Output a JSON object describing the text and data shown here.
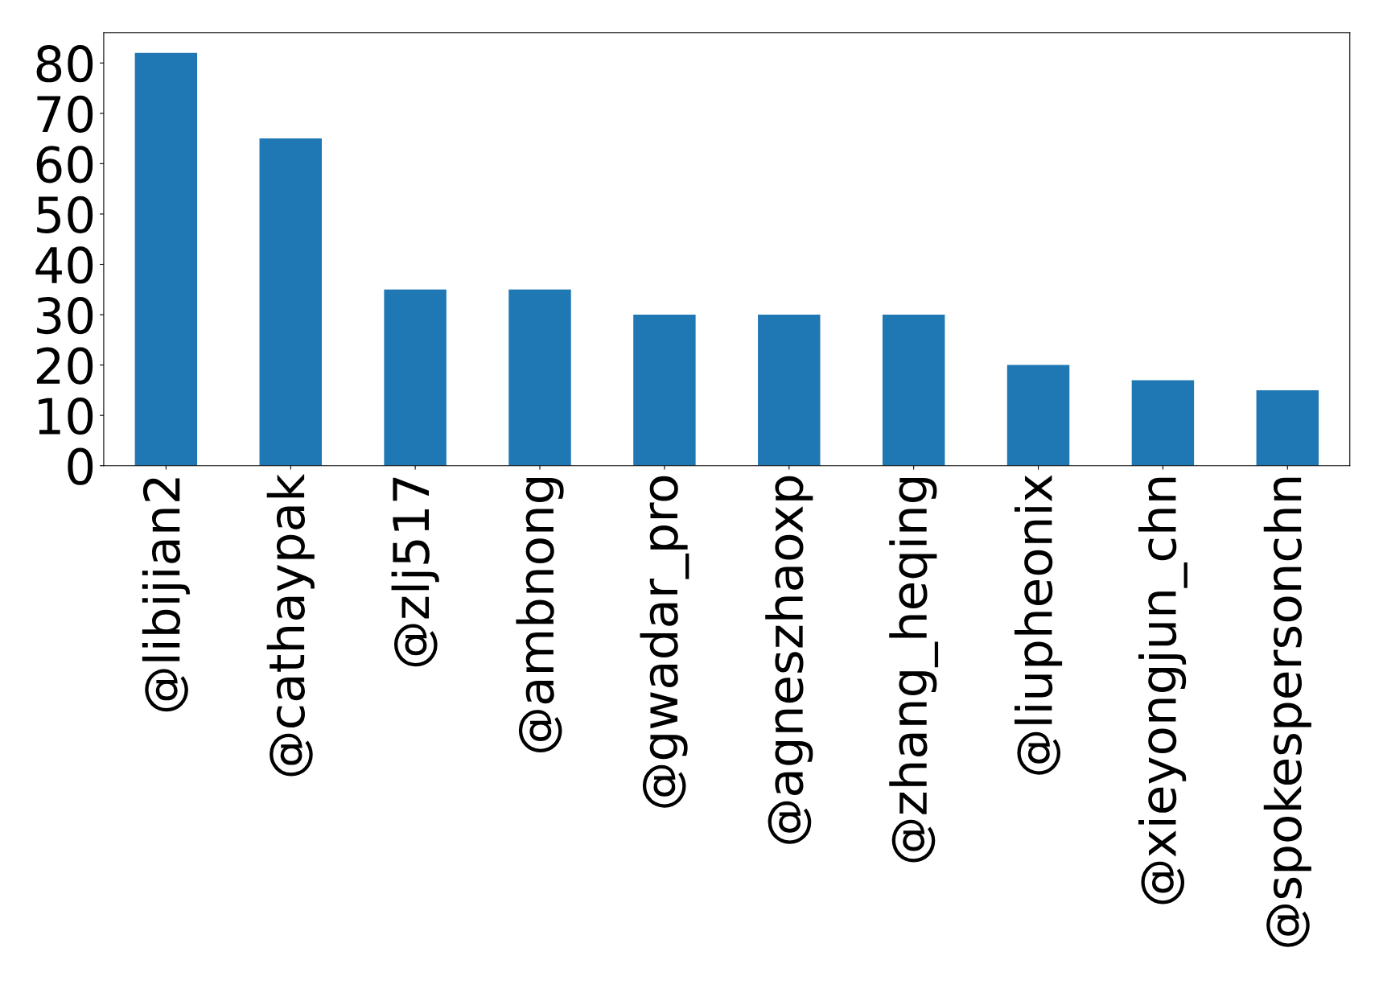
{
  "chart_data": {
    "type": "bar",
    "categories": [
      "@libijian2",
      "@cathaypak",
      "@zlj517",
      "@ambnong",
      "@gwadar_pro",
      "@agneszhaoxp",
      "@zhang_heqing",
      "@liupheonix",
      "@xieyongjun_chn",
      "@spokespersonchn"
    ],
    "values": [
      82,
      65,
      35,
      35,
      30,
      30,
      30,
      20,
      17,
      15
    ],
    "color": "#1f77b4",
    "ylim": [
      0,
      86
    ],
    "yticks": [
      0,
      10,
      20,
      30,
      40,
      50,
      60,
      70,
      80
    ],
    "grid": false
  }
}
